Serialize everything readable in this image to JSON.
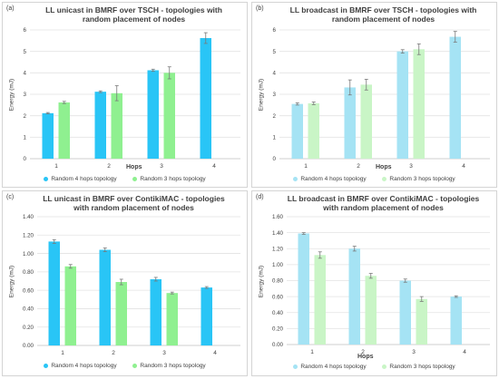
{
  "panels": [
    {
      "label": "(a)",
      "title_line1": "LL unicast in BMRF over TSCH - topologies with",
      "title_line2": "random placement of nodes"
    },
    {
      "label": "(b)",
      "title_line1": "LL broadcast in BMRF over TSCH - topologies with",
      "title_line2": "random placement of nodes"
    },
    {
      "label": "(c)",
      "title_line1": "LL unicast in BMRF over ContikiMAC - topologies",
      "title_line2": "with random placement of nodes"
    },
    {
      "label": "(d)",
      "title_line1": "LL broadcast in BMRF over ContikiMAC - topologies",
      "title_line2": "with random placement of nodes"
    }
  ],
  "colors": {
    "series1_solid": "#29c5f6",
    "series2_solid": "#8ff090",
    "series1_light": "#a5e3f4",
    "series2_light": "#c9f5c6",
    "error": "#7a7a7a",
    "grid": "#e3e3e3",
    "text": "#404040"
  },
  "chart_data": [
    {
      "type": "bar",
      "title": "LL unicast in BMRF over TSCH - topologies with random placement of nodes",
      "xlabel": "Hops",
      "ylabel": "Energy (mJ)",
      "ylim": [
        0,
        6
      ],
      "yticks": [
        "0",
        "1",
        "2",
        "3",
        "4",
        "5",
        "6"
      ],
      "categories": [
        "1",
        "2",
        "3",
        "4"
      ],
      "grid": true,
      "legend_position": "bottom",
      "series": [
        {
          "name": "Random 4 hops topology",
          "values": [
            2.12,
            3.12,
            4.12,
            5.62
          ],
          "errors": [
            0.03,
            0.04,
            0.05,
            0.25
          ]
        },
        {
          "name": "Random 3 hops topology",
          "values": [
            2.62,
            3.05,
            4.0,
            null
          ],
          "errors": [
            0.05,
            0.35,
            0.28,
            null
          ]
        }
      ]
    },
    {
      "type": "bar",
      "title": "LL broadcast in BMRF over TSCH - topologies with random placement of nodes",
      "xlabel": "Hops",
      "ylabel": "Energy (mJ)",
      "ylim": [
        0,
        6
      ],
      "yticks": [
        "0",
        "1",
        "2",
        "3",
        "4",
        "5",
        "6"
      ],
      "categories": [
        "1",
        "2",
        "3",
        "4"
      ],
      "grid": true,
      "legend_position": "bottom",
      "series": [
        {
          "name": "Random 4 hops topology",
          "values": [
            2.55,
            3.32,
            5.0,
            5.68
          ],
          "errors": [
            0.05,
            0.35,
            0.08,
            0.25
          ]
        },
        {
          "name": "Random 3 hops topology",
          "values": [
            2.58,
            3.45,
            5.1,
            null
          ],
          "errors": [
            0.06,
            0.25,
            0.25,
            null
          ]
        }
      ]
    },
    {
      "type": "bar",
      "title": "LL unicast in BMRF over ContikiMAC - topologies with random placement of nodes",
      "xlabel": "",
      "ylabel": "Energy (mJ)",
      "ylim": [
        0,
        1.4
      ],
      "yticks": [
        "0.00",
        "0.20",
        "0.40",
        "0.60",
        "0.80",
        "1.00",
        "1.20",
        "1.40"
      ],
      "categories": [
        "1",
        "2",
        "3",
        "4"
      ],
      "grid": true,
      "legend_position": "bottom",
      "series": [
        {
          "name": "Random 4 hops topology",
          "values": [
            1.13,
            1.04,
            0.72,
            0.63
          ],
          "errors": [
            0.02,
            0.02,
            0.02,
            0.01
          ]
        },
        {
          "name": "Random 3 hops topology",
          "values": [
            0.86,
            0.69,
            0.57,
            null
          ],
          "errors": [
            0.02,
            0.03,
            0.01,
            null
          ]
        }
      ]
    },
    {
      "type": "bar",
      "title": "LL broadcast in BMRF over ContikiMAC - topologies with random placement of nodes",
      "xlabel": "Hops",
      "ylabel": "Energy (mJ)",
      "ylim": [
        0,
        1.6
      ],
      "yticks": [
        "0.00",
        "0.20",
        "0.40",
        "0.60",
        "0.80",
        "1.00",
        "1.20",
        "1.40",
        "1.60"
      ],
      "categories": [
        "1",
        "2",
        "3",
        "4"
      ],
      "grid": true,
      "legend_position": "bottom",
      "series": [
        {
          "name": "Random 4 hops topology",
          "values": [
            1.39,
            1.2,
            0.8,
            0.6
          ],
          "errors": [
            0.01,
            0.03,
            0.02,
            0.01
          ]
        },
        {
          "name": "Random 3 hops topology",
          "values": [
            1.12,
            0.86,
            0.57,
            null
          ],
          "errors": [
            0.04,
            0.03,
            0.03,
            null
          ]
        }
      ]
    }
  ]
}
